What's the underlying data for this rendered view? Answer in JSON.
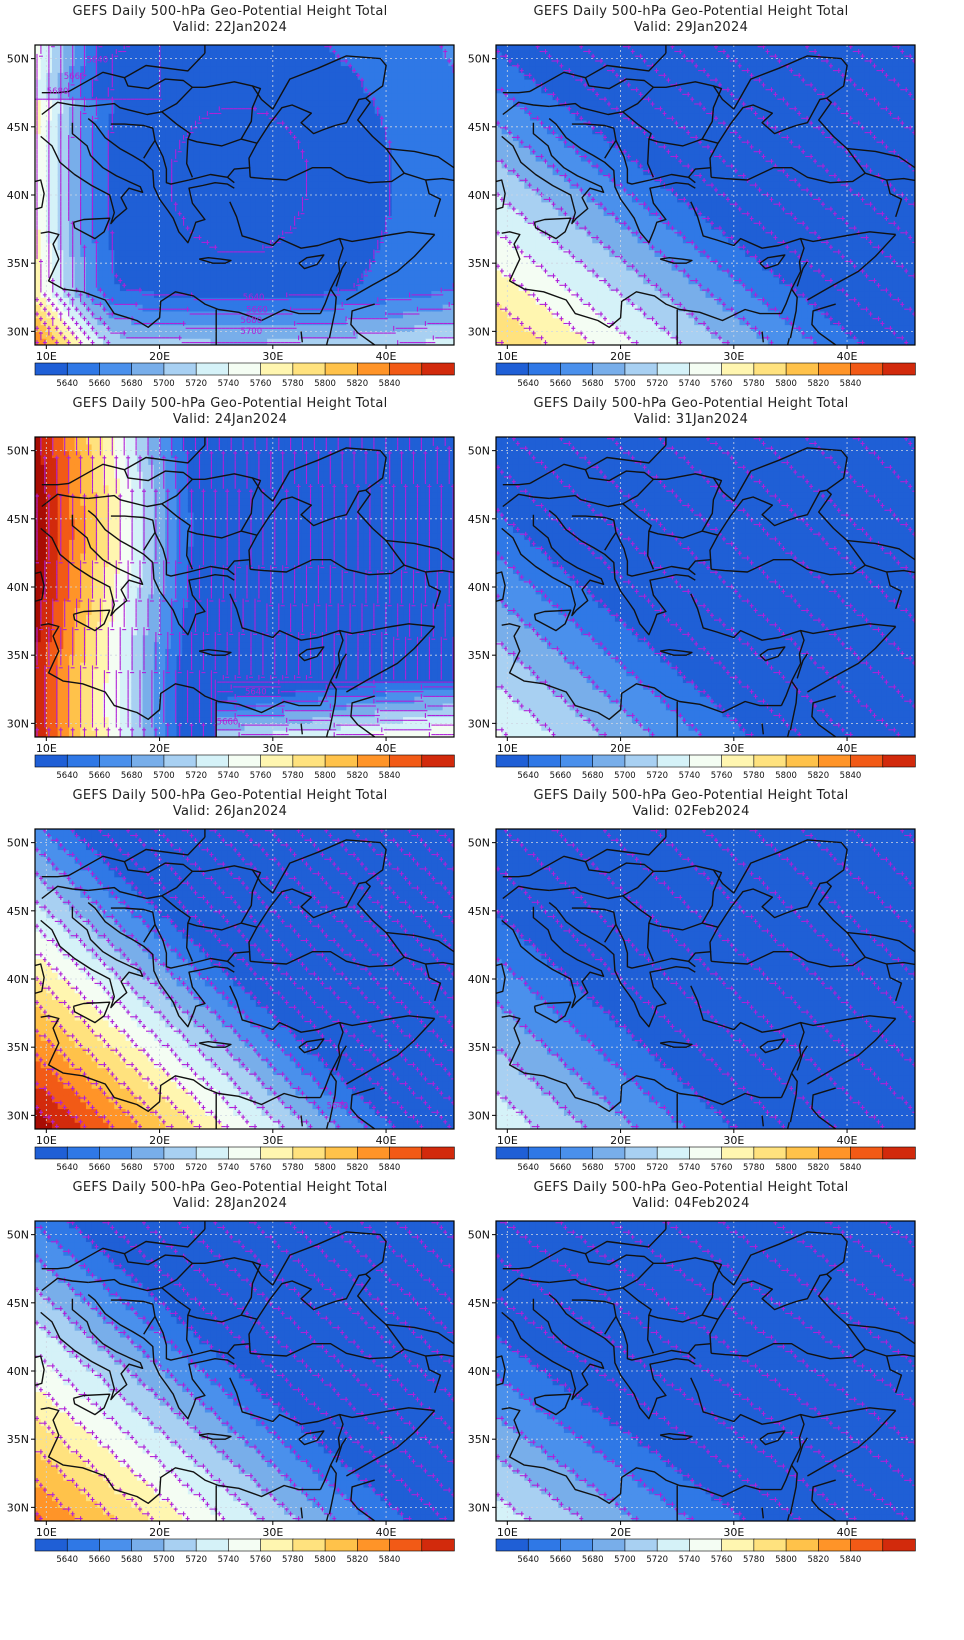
{
  "colors": {
    "bands": [
      "#1f5fd6",
      "#2f78e6",
      "#4a90ec",
      "#78aeea",
      "#a8d0f2",
      "#d5f2f8",
      "#f4fdf3",
      "#fff6b0",
      "#ffe27e",
      "#ffc24a",
      "#ff9428",
      "#f25a16",
      "#d22a0c",
      "#a80c04"
    ],
    "contour": "#b020d8",
    "coast": "#111111",
    "grid": "#cfd6e2"
  },
  "legend_levels": [
    "5640",
    "5660",
    "5680",
    "5700",
    "5720",
    "5740",
    "5760",
    "5780",
    "5800",
    "5820",
    "5840"
  ],
  "x_ticks": [
    "10E",
    "20E",
    "30E",
    "40E"
  ],
  "y_ticks": [
    "50N",
    "45N",
    "40N",
    "35N",
    "30N"
  ],
  "panels": [
    {
      "title": "GEFS Daily 500-hPa Geo-Potential Height Total",
      "valid": "Valid: 22Jan2024",
      "col": 0,
      "row": 0,
      "pattern": "trough",
      "contour_labels": [
        "5640",
        "5660",
        "5680",
        "5640",
        "5660",
        "5680",
        "5700"
      ]
    },
    {
      "title": "GEFS Daily 500-hPa Geo-Potential Height Total",
      "valid": "Valid: 29Jan2024",
      "col": 1,
      "row": 0,
      "pattern": "ridgeSW",
      "contour_labels": []
    },
    {
      "title": "GEFS Daily 500-hPa Geo-Potential Height Total",
      "valid": "Valid: 24Jan2024",
      "col": 0,
      "row": 1,
      "pattern": "ridgeW",
      "contour_labels": [
        "5640",
        "5660"
      ]
    },
    {
      "title": "GEFS Daily 500-hPa Geo-Potential Height Total",
      "valid": "Valid: 31Jan2024",
      "col": 1,
      "row": 1,
      "pattern": "weakSW",
      "contour_labels": []
    },
    {
      "title": "GEFS Daily 500-hPa Geo-Potential Height Total",
      "valid": "Valid: 26Jan2024",
      "col": 0,
      "row": 2,
      "pattern": "strongSW",
      "contour_labels": [
        "5640"
      ]
    },
    {
      "title": "GEFS Daily 500-hPa Geo-Potential Height Total",
      "valid": "Valid: 02Feb2024",
      "col": 1,
      "row": 2,
      "pattern": "weakSW2",
      "contour_labels": []
    },
    {
      "title": "GEFS Daily 500-hPa Geo-Potential Height Total",
      "valid": "Valid: 28Jan2024",
      "col": 0,
      "row": 3,
      "pattern": "midSW",
      "contour_labels": []
    },
    {
      "title": "GEFS Daily 500-hPa Geo-Potential Height Total",
      "valid": "Valid: 04Feb2024",
      "col": 1,
      "row": 3,
      "pattern": "weakSW3",
      "contour_labels": []
    }
  ]
}
